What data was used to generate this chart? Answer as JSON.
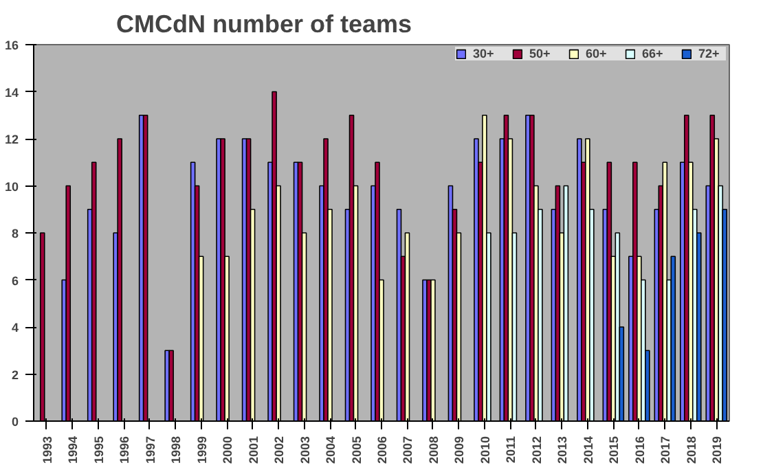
{
  "chart_data": {
    "type": "bar",
    "title": "CMCdN number of teams",
    "categories": [
      "1993",
      "1994",
      "1995",
      "1996",
      "1997",
      "1998",
      "1999",
      "2000",
      "2001",
      "2002",
      "2003",
      "2004",
      "2005",
      "2006",
      "2007",
      "2008",
      "2009",
      "2010",
      "2011",
      "2012",
      "2013",
      "2014",
      "2015",
      "2016",
      "2017",
      "2018",
      "2019"
    ],
    "series": [
      {
        "name": "30+",
        "color": "#7070ff",
        "values": [
          null,
          6,
          9,
          8,
          13,
          3,
          11,
          12,
          12,
          11,
          11,
          10,
          9,
          10,
          9,
          6,
          10,
          12,
          12,
          13,
          9,
          12,
          9,
          7,
          9,
          11,
          10
        ]
      },
      {
        "name": "50+",
        "color": "#a0003a",
        "values": [
          8,
          10,
          11,
          12,
          13,
          3,
          10,
          12,
          12,
          14,
          11,
          12,
          13,
          11,
          7,
          6,
          9,
          11,
          13,
          13,
          10,
          11,
          11,
          11,
          10,
          13,
          13
        ]
      },
      {
        "name": "60+",
        "color": "#ffffc0",
        "values": [
          null,
          null,
          null,
          null,
          null,
          null,
          7,
          7,
          9,
          10,
          8,
          9,
          10,
          6,
          8,
          6,
          8,
          13,
          12,
          10,
          8,
          12,
          7,
          7,
          11,
          11,
          12
        ]
      },
      {
        "name": "66+",
        "color": "#d8ffff",
        "values": [
          null,
          null,
          null,
          null,
          null,
          null,
          null,
          null,
          null,
          null,
          null,
          null,
          null,
          null,
          null,
          null,
          null,
          8,
          8,
          9,
          10,
          9,
          8,
          6,
          6,
          9,
          10
        ]
      },
      {
        "name": "72+",
        "color": "#1a5fd0",
        "values": [
          null,
          null,
          null,
          null,
          null,
          null,
          null,
          null,
          null,
          null,
          null,
          null,
          null,
          null,
          null,
          null,
          null,
          null,
          null,
          null,
          null,
          null,
          4,
          3,
          7,
          8,
          9
        ]
      }
    ],
    "ylim": [
      0,
      16
    ],
    "yticks": [
      0,
      2,
      4,
      6,
      8,
      10,
      12,
      14,
      16
    ],
    "grid": false,
    "legend": "top right"
  }
}
